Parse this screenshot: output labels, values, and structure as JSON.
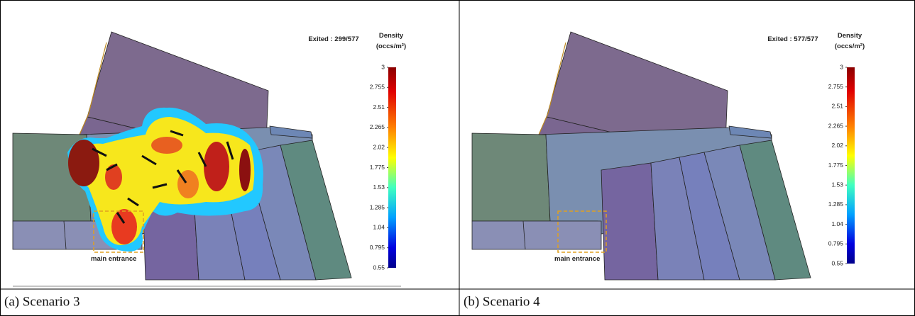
{
  "panels": [
    {
      "exited": "Exited : 299/577",
      "legend_title": "Density",
      "legend_unit": "(occs/m²)",
      "colorbar_ticks": [
        3,
        2.755,
        2.51,
        2.265,
        2.02,
        1.775,
        1.53,
        1.285,
        1.04,
        0.795,
        0.55
      ],
      "annotation": "main entrance",
      "caption": "(a) Scenario 3"
    },
    {
      "exited": "Exited : 577/577",
      "legend_title": "Density",
      "legend_unit": "(occs/m²)",
      "colorbar_ticks": [
        3,
        2.755,
        2.51,
        2.265,
        2.02,
        1.775,
        1.53,
        1.285,
        1.04,
        0.795,
        0.55
      ],
      "annotation": "main entrance",
      "caption": "(b) Scenario 4"
    }
  ]
}
